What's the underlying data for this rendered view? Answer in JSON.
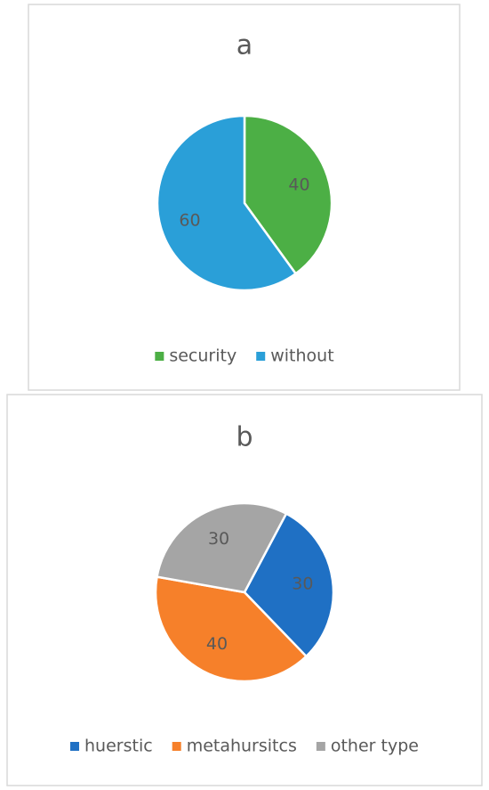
{
  "chart_data": [
    {
      "type": "pie",
      "title": "a",
      "categories": [
        "security",
        "without"
      ],
      "values": [
        40,
        60
      ],
      "colors": [
        "#4caf45",
        "#2a9fd8"
      ],
      "legend": "bottom"
    },
    {
      "type": "pie",
      "title": "b",
      "categories": [
        "huerstic",
        "metahursitcs",
        "other type"
      ],
      "values": [
        30,
        40,
        30
      ],
      "colors": [
        "#1f70c4",
        "#f6802a",
        "#a5a5a5"
      ],
      "legend": "bottom"
    }
  ]
}
